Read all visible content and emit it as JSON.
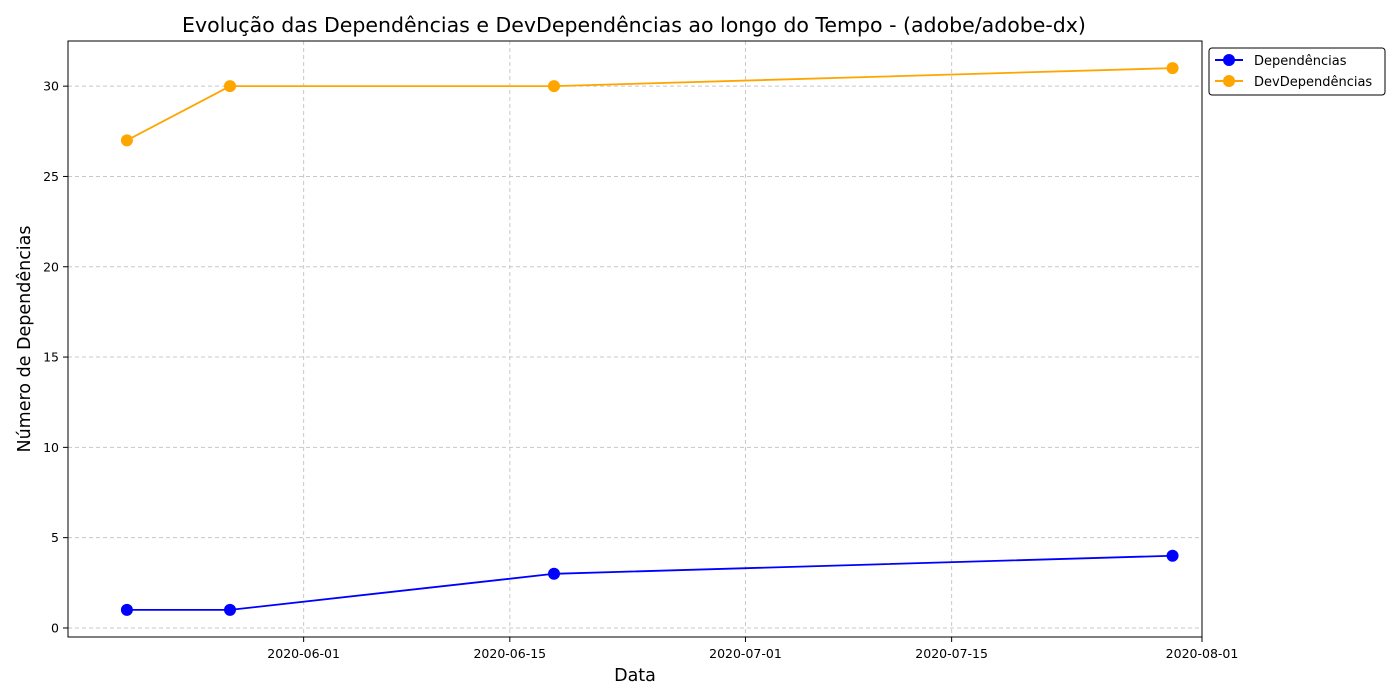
{
  "chart_data": {
    "type": "line",
    "title": "Evolução das Dependências e DevDependências ao longo do Tempo - (adobe/adobe-dx)",
    "xlabel": "Data",
    "ylabel": "Número de Dependências",
    "x": [
      "2020-05-20",
      "2020-05-27",
      "2020-06-18",
      "2020-07-30"
    ],
    "series": [
      {
        "name": "Dependências",
        "values": [
          1,
          1,
          3,
          4
        ],
        "color": "#0000ff"
      },
      {
        "name": "DevDependências",
        "values": [
          27,
          30,
          30,
          31
        ],
        "color": "#ffa500"
      }
    ],
    "xlim": [
      "2020-05-16",
      "2020-08-01"
    ],
    "ylim": [
      -0.5,
      32.5
    ],
    "x_ticks": [
      "2020-06-01",
      "2020-06-15",
      "2020-07-01",
      "2020-07-15",
      "2020-08-01"
    ],
    "y_ticks": [
      0,
      5,
      10,
      15,
      20,
      25,
      30
    ],
    "grid": true,
    "legend_position": "outside-top-right",
    "marker": "circle"
  }
}
